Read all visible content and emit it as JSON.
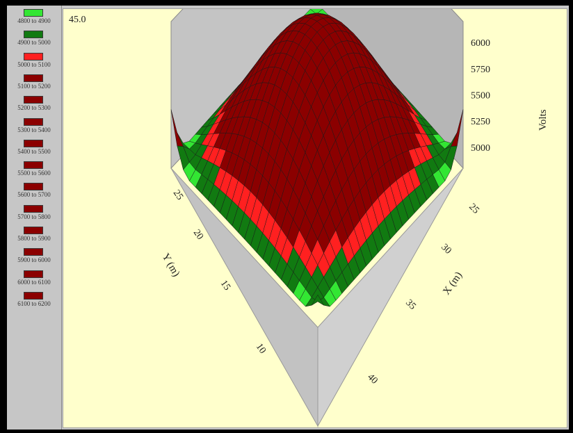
{
  "chart_data": {
    "type": "surface",
    "view_angle": "45.0",
    "legend": [
      {
        "label": "4800 to 4900",
        "color": "#33e633"
      },
      {
        "label": "4900 to 5000",
        "color": "#117a11"
      },
      {
        "label": "5000 to 5100",
        "color": "#ff2020"
      },
      {
        "label": "5100 to 5200",
        "color": "#8b0000"
      },
      {
        "label": "5200 to 5300",
        "color": "#8b0000"
      },
      {
        "label": "5300 to 5400",
        "color": "#8b0000"
      },
      {
        "label": "5400 to 5500",
        "color": "#8b0000"
      },
      {
        "label": "5500 to 5600",
        "color": "#8b0000"
      },
      {
        "label": "5600 to 5700",
        "color": "#8b0000"
      },
      {
        "label": "5700 to 5800",
        "color": "#8b0000"
      },
      {
        "label": "5800 to 5900",
        "color": "#8b0000"
      },
      {
        "label": "5900 to 6000",
        "color": "#8b0000"
      },
      {
        "label": "6000 to 6100",
        "color": "#8b0000"
      },
      {
        "label": "6100 to 6200",
        "color": "#8b0000"
      }
    ],
    "z_axis": {
      "label": "Volts",
      "ticks": [
        "6000",
        "5750",
        "5500",
        "5250",
        "5000"
      ]
    },
    "x_axis": {
      "label": "X (m)",
      "ticks": [
        "25",
        "30",
        "35",
        "40"
      ]
    },
    "y_axis": {
      "label": "Y (m)",
      "ticks": [
        "25",
        "20",
        "15",
        "10"
      ]
    },
    "zlim": [
      4800,
      6200
    ],
    "peak_value": 6100,
    "grid": true
  }
}
